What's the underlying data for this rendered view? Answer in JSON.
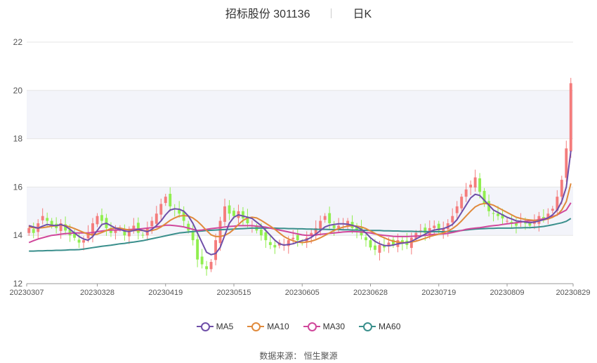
{
  "header": {
    "stock": "招标股份 301136",
    "period": "日K"
  },
  "source": {
    "label": "数据来源：",
    "value": "恒生聚源"
  },
  "colors": {
    "up": "#f47c7c",
    "down": "#90ee4f",
    "ma5": "#6f4fa8",
    "ma10": "#e08a3c",
    "ma30": "#d0479b",
    "ma60": "#3a8f8c",
    "band": "#f3f4fa",
    "grid": "#e6e6e6"
  },
  "chart_data": {
    "type": "candlestick",
    "ylim": [
      12,
      22
    ],
    "yticks": [
      12,
      14,
      16,
      18,
      20,
      22
    ],
    "xtick_labels": [
      "20230307",
      "20230328",
      "20230419",
      "20230515",
      "20230605",
      "20230628",
      "20230719",
      "20230809",
      "20230829"
    ],
    "xtick_index": [
      0,
      15,
      30,
      45,
      60,
      75,
      90,
      105,
      119
    ],
    "legend_position": "bottom",
    "series": [
      {
        "name": "MA5",
        "color_key": "ma5"
      },
      {
        "name": "MA10",
        "color_key": "ma10"
      },
      {
        "name": "MA30",
        "color_key": "ma30"
      },
      {
        "name": "MA60",
        "color_key": "ma60"
      }
    ],
    "close": [
      14.3,
      14.1,
      14.5,
      14.8,
      14.6,
      14.4,
      14.3,
      14.5,
      14.2,
      14.0,
      13.9,
      13.7,
      13.8,
      14.1,
      14.5,
      14.8,
      14.6,
      14.3,
      14.1,
      14.2,
      14.3,
      14.0,
      14.2,
      14.4,
      14.1,
      14.0,
      14.3,
      14.6,
      14.9,
      15.3,
      15.6,
      15.2,
      15.1,
      14.9,
      14.6,
      14.2,
      13.8,
      13.0,
      12.8,
      12.6,
      12.9,
      13.8,
      14.6,
      15.2,
      14.9,
      14.8,
      15.0,
      14.7,
      14.5,
      14.4,
      14.2,
      14.0,
      13.8,
      13.6,
      13.5,
      13.7,
      13.6,
      13.8,
      13.9,
      13.8,
      13.7,
      13.9,
      14.1,
      14.3,
      14.6,
      14.8,
      14.5,
      14.3,
      14.4,
      14.5,
      14.6,
      14.3,
      14.2,
      14.0,
      13.8,
      13.5,
      13.4,
      13.6,
      13.5,
      13.7,
      13.6,
      13.8,
      13.7,
      13.6,
      13.9,
      14.1,
      14.2,
      14.1,
      14.3,
      14.4,
      14.2,
      14.3,
      14.5,
      14.8,
      15.2,
      15.6,
      15.9,
      16.1,
      16.4,
      15.8,
      15.3,
      15.0,
      14.9,
      14.8,
      14.7,
      14.6,
      14.5,
      14.4,
      14.6,
      14.5,
      14.4,
      14.6,
      14.8,
      14.7,
      14.9,
      15.1,
      15.6,
      16.3,
      17.6,
      20.3
    ],
    "ma5": [
      14.4,
      14.35,
      14.3,
      14.38,
      14.45,
      14.42,
      14.4,
      14.45,
      14.38,
      14.25,
      14.1,
      13.95,
      13.85,
      13.8,
      13.95,
      14.2,
      14.45,
      14.5,
      14.4,
      14.3,
      14.25,
      14.18,
      14.16,
      14.2,
      14.25,
      14.2,
      14.15,
      14.25,
      14.4,
      14.6,
      14.85,
      15.05,
      15.1,
      15.08,
      15.0,
      14.8,
      14.5,
      14.1,
      13.7,
      13.3,
      13.2,
      13.25,
      13.5,
      14.0,
      14.5,
      14.75,
      14.85,
      14.8,
      14.75,
      14.7,
      14.55,
      14.4,
      14.2,
      14.0,
      13.8,
      13.65,
      13.6,
      13.62,
      13.65,
      13.72,
      13.78,
      13.82,
      13.92,
      14.05,
      14.2,
      14.35,
      14.42,
      14.45,
      14.48,
      14.48,
      14.46,
      14.42,
      14.35,
      14.25,
      14.1,
      13.9,
      13.75,
      13.65,
      13.58,
      13.57,
      13.6,
      13.65,
      13.68,
      13.7,
      13.75,
      13.85,
      13.95,
      14.05,
      14.15,
      14.22,
      14.25,
      14.28,
      14.35,
      14.45,
      14.65,
      14.95,
      15.25,
      15.55,
      15.7,
      15.65,
      15.45,
      15.25,
      15.05,
      14.95,
      14.85,
      14.75,
      14.68,
      14.6,
      14.58,
      14.55,
      14.52,
      14.55,
      14.6,
      14.65,
      14.72,
      14.85,
      15.05,
      15.4,
      16.0,
      17.5
    ],
    "ma10": [
      14.35,
      14.32,
      14.3,
      14.32,
      14.35,
      14.38,
      14.4,
      14.42,
      14.4,
      14.35,
      14.28,
      14.2,
      14.12,
      14.05,
      14.02,
      14.05,
      14.12,
      14.2,
      14.28,
      14.3,
      14.3,
      14.26,
      14.22,
      14.2,
      14.2,
      14.2,
      14.18,
      14.2,
      14.25,
      14.35,
      14.48,
      14.62,
      14.72,
      14.8,
      14.82,
      14.8,
      14.72,
      14.58,
      14.4,
      14.2,
      14.02,
      13.95,
      13.95,
      14.0,
      14.1,
      14.25,
      14.45,
      14.62,
      14.72,
      14.75,
      14.72,
      14.62,
      14.5,
      14.38,
      14.25,
      14.1,
      13.95,
      13.85,
      13.78,
      13.72,
      13.7,
      13.72,
      13.76,
      13.82,
      13.9,
      14.0,
      14.1,
      14.2,
      14.28,
      14.34,
      14.38,
      14.4,
      14.38,
      14.35,
      14.28,
      14.18,
      14.08,
      13.98,
      13.9,
      13.82,
      13.76,
      13.72,
      13.7,
      13.7,
      13.72,
      13.76,
      13.82,
      13.88,
      13.95,
      14.0,
      14.05,
      14.1,
      14.18,
      14.28,
      14.42,
      14.6,
      14.8,
      15.0,
      15.18,
      15.28,
      15.32,
      15.3,
      15.25,
      15.15,
      15.05,
      14.95,
      14.85,
      14.75,
      14.7,
      14.66,
      14.64,
      14.62,
      14.62,
      14.64,
      14.68,
      14.75,
      14.85,
      15.05,
      15.4,
      16.15
    ],
    "ma30": [
      13.7,
      13.78,
      13.85,
      13.9,
      13.95,
      14.0,
      14.02,
      14.05,
      14.07,
      14.08,
      14.1,
      14.1,
      14.1,
      14.1,
      14.12,
      14.15,
      14.18,
      14.2,
      14.22,
      14.22,
      14.22,
      14.23,
      14.24,
      14.25,
      14.26,
      14.28,
      14.3,
      14.32,
      14.35,
      14.38,
      14.42,
      14.42,
      14.4,
      14.38,
      14.35,
      14.3,
      14.25,
      14.2,
      14.22,
      14.25,
      14.28,
      14.3,
      14.32,
      14.35,
      14.37,
      14.38,
      14.4,
      14.4,
      14.4,
      14.4,
      14.38,
      14.36,
      14.34,
      14.3,
      14.26,
      14.22,
      14.18,
      14.14,
      14.1,
      14.06,
      14.02,
      14.0,
      14.0,
      14.02,
      14.04,
      14.06,
      14.08,
      14.1,
      14.12,
      14.14,
      14.15,
      14.16,
      14.15,
      14.14,
      14.12,
      14.1,
      14.06,
      14.02,
      14.0,
      13.98,
      13.96,
      13.95,
      13.95,
      13.95,
      13.96,
      13.97,
      13.98,
      14.0,
      14.02,
      14.04,
      14.05,
      14.06,
      14.08,
      14.12,
      14.16,
      14.2,
      14.25,
      14.28,
      14.3,
      14.32,
      14.35,
      14.38,
      14.4,
      14.42,
      14.45,
      14.48,
      14.5,
      14.52,
      14.55,
      14.58,
      14.6,
      14.62,
      14.65,
      14.68,
      14.72,
      14.78,
      14.85,
      14.95,
      15.05,
      15.35
    ],
    "ma60": [
      13.35,
      13.35,
      13.36,
      13.36,
      13.37,
      13.37,
      13.38,
      13.38,
      13.39,
      13.4,
      13.4,
      13.41,
      13.43,
      13.46,
      13.49,
      13.52,
      13.55,
      13.57,
      13.59,
      13.62,
      13.65,
      13.67,
      13.7,
      13.72,
      13.75,
      13.78,
      13.82,
      13.86,
      13.9,
      13.94,
      13.98,
      14.02,
      14.06,
      14.1,
      14.12,
      14.14,
      14.16,
      14.17,
      14.18,
      14.2,
      14.21,
      14.22,
      14.23,
      14.24,
      14.25,
      14.26,
      14.27,
      14.28,
      14.29,
      14.3,
      14.3,
      14.3,
      14.3,
      14.3,
      14.3,
      14.29,
      14.29,
      14.28,
      14.28,
      14.27,
      14.27,
      14.26,
      14.26,
      14.25,
      14.25,
      14.25,
      14.24,
      14.24,
      14.24,
      14.23,
      14.23,
      14.22,
      14.22,
      14.21,
      14.21,
      14.2,
      14.2,
      14.2,
      14.19,
      14.19,
      14.18,
      14.18,
      14.17,
      14.17,
      14.17,
      14.16,
      14.16,
      14.16,
      14.15,
      14.15,
      14.15,
      14.15,
      14.16,
      14.17,
      14.18,
      14.2,
      14.22,
      14.24,
      14.26,
      14.27,
      14.28,
      14.29,
      14.29,
      14.3,
      14.3,
      14.3,
      14.3,
      14.31,
      14.31,
      14.32,
      14.32,
      14.33,
      14.35,
      14.37,
      14.4,
      14.44,
      14.48,
      14.52,
      14.58,
      14.7
    ]
  }
}
